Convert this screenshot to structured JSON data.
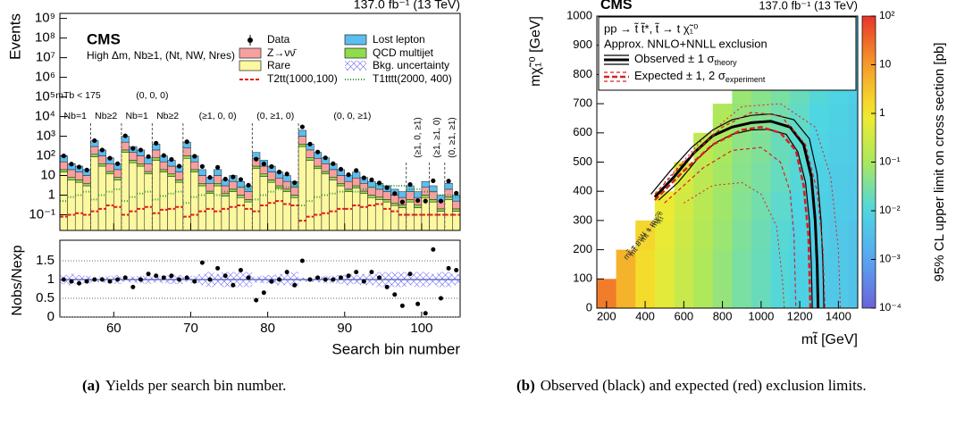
{
  "chart_data": [
    {
      "type": "histogram",
      "log_y": true,
      "experiment": "CMS",
      "lumi": "137.0 fb⁻¹ (13 TeV)",
      "selection": "High Δm, Nb≥1, (Nt, NW, Nres)",
      "xlabel": "Search bin number",
      "ylabel": "Events",
      "ratio_ylabel": "Nobs/Nexp",
      "bins": [
        53,
        54,
        55,
        56,
        57,
        58,
        59,
        60,
        61,
        62,
        63,
        64,
        65,
        66,
        67,
        68,
        69,
        70,
        71,
        72,
        73,
        74,
        75,
        76,
        77,
        78,
        79,
        80,
        81,
        82,
        83,
        84,
        85,
        86,
        87,
        88,
        89,
        90,
        91,
        92,
        93,
        94,
        95,
        96,
        97,
        98,
        99,
        100,
        101,
        102,
        103,
        104,
        105
      ],
      "xlim": [
        53,
        105
      ],
      "xticks": [
        60,
        70,
        80,
        90,
        100
      ],
      "ylim": [
        0.016,
        1800000000
      ],
      "yticks": [
        {
          "value": 1000000000,
          "label": "10⁹"
        },
        {
          "value": 100000000,
          "label": "10⁸"
        },
        {
          "value": 10000000,
          "label": "10⁷"
        },
        {
          "value": 1000000,
          "label": "10⁶"
        },
        {
          "value": 100000,
          "label": "10⁵"
        },
        {
          "value": 10000,
          "label": "10⁴"
        },
        {
          "value": 1000,
          "label": "10³"
        },
        {
          "value": 100,
          "label": "10²"
        },
        10,
        1,
        {
          "value": 0.1,
          "label": "10⁻¹"
        }
      ],
      "ratio_ylim": [
        0,
        2
      ],
      "ratio_yticks": [
        0,
        0.5,
        1,
        1.5
      ],
      "separators": [
        57,
        61,
        65,
        69,
        78,
        84,
        98,
        101,
        103
      ],
      "group_labels": [
        "mTb < 175",
        "(0, 0, 0)"
      ],
      "region_labels": [
        "Nb=1",
        "Nb≥2",
        "Nb=1",
        "Nb≥2",
        "(≥1, 0, 0)",
        "(0, ≥1, 0)",
        "(0, 0, ≥1)",
        "(≥1, 0, ≥1)",
        "(≥1, ≥1, 0)",
        "(0, ≥1, ≥1)"
      ],
      "series": [
        {
          "name": "Lost lepton",
          "color": "#5cbdf0",
          "values": [
            50,
            20,
            15,
            10,
            300,
            100,
            40,
            20,
            500,
            150,
            100,
            40,
            200,
            50,
            30,
            15,
            250,
            50,
            10,
            4,
            10,
            3,
            5,
            2.5,
            1.5,
            75,
            30,
            15,
            7.5,
            5,
            2.5,
            1000,
            200,
            75,
            40,
            20,
            10,
            5,
            7.5,
            4,
            2.5,
            2,
            1.5,
            1,
            0.75,
            1.5,
            0.75,
            2.5,
            1.5,
            0.5,
            2,
            0.5
          ]
        },
        {
          "name": "Z→νν̄",
          "color": "#f7a0a0",
          "values": [
            30,
            12,
            9,
            6,
            180,
            60,
            24,
            12,
            300,
            90,
            60,
            24,
            120,
            30,
            18,
            9,
            150,
            30,
            6,
            2.4,
            6,
            1.8,
            3,
            1.5,
            0.9,
            45,
            18,
            9,
            4.5,
            3,
            1.5,
            600,
            120,
            45,
            24,
            12,
            6,
            3,
            4.5,
            2.4,
            1.5,
            1.2,
            0.9,
            0.6,
            0.45,
            0.9,
            0.45,
            1.5,
            0.9,
            0.3,
            1.2,
            0.3
          ]
        },
        {
          "name": "QCD multijet",
          "color": "#8fdc4a",
          "values": [
            5,
            2,
            1.5,
            1,
            30,
            10,
            4,
            2,
            50,
            15,
            10,
            4,
            20,
            5,
            3,
            1.5,
            25,
            5,
            1,
            0.4,
            1,
            0.3,
            0.5,
            0.25,
            0.15,
            7.5,
            3,
            1.5,
            0.75,
            0.5,
            0.25,
            100,
            20,
            7.5,
            4,
            2,
            1,
            0.5,
            0.75,
            0.4,
            0.25,
            0.2,
            0.15,
            0.1,
            0.08,
            0.15,
            0.08,
            0.25,
            0.15,
            0.05,
            0.2,
            0.05
          ]
        },
        {
          "name": "Rare",
          "color": "#fbf8a0",
          "values": [
            15,
            6,
            4.5,
            3,
            90,
            30,
            12,
            6,
            150,
            45,
            30,
            12,
            60,
            15,
            9,
            4.5,
            75,
            15,
            3,
            1.2,
            3,
            0.9,
            1.5,
            0.75,
            0.45,
            22.5,
            9,
            4.5,
            2.25,
            1.5,
            0.75,
            300,
            60,
            22.5,
            12,
            6,
            3,
            1.5,
            2.25,
            1.2,
            0.75,
            0.6,
            0.45,
            0.3,
            0.23,
            0.45,
            0.23,
            0.75,
            0.45,
            0.15,
            0.6,
            0.15
          ]
        }
      ],
      "data": {
        "name": "Data",
        "values": [
          100,
          38,
          27,
          19,
          600,
          200,
          76,
          40,
          1050,
          240,
          200,
          92,
          440,
          105,
          66,
          30,
          525,
          95,
          29,
          8,
          26,
          6.6,
          8.5,
          6.3,
          3.2,
          68,
          39,
          28.5,
          15,
          12,
          4.3,
          3000,
          400,
          158,
          80,
          40,
          21,
          11,
          18,
          7.6,
          6,
          4.2,
          2.4,
          1.2,
          0.45,
          3.5,
          0.53,
          0.5,
          5.4,
          0.5,
          5.2,
          1.25
        ]
      },
      "ratio": {
        "values": [
          1,
          0.95,
          0.9,
          0.95,
          1,
          1,
          0.95,
          1,
          1.05,
          0.8,
          1,
          1.15,
          1.1,
          1.05,
          1.1,
          1,
          1.05,
          0.95,
          1.45,
          1,
          1.3,
          1.1,
          0.85,
          1.25,
          1.05,
          0.45,
          0.65,
          0.95,
          1,
          1.2,
          0.85,
          1.5,
          1,
          1.05,
          1,
          1,
          1.05,
          1.1,
          1.2,
          0.95,
          1.2,
          1.05,
          0.8,
          0.6,
          0.3,
          1.15,
          0.35,
          0.1,
          1.8,
          0.5,
          1.3,
          1.25
        ]
      },
      "uncertainty": {
        "name": "Bkg. uncertainty",
        "color": "#5b5bf0",
        "values": [
          0.12,
          0.15,
          0.12,
          0.1,
          0.06,
          0.08,
          0.1,
          0.12,
          0.06,
          0.08,
          0.1,
          0.12,
          0.08,
          0.1,
          0.12,
          0.12,
          0.06,
          0.1,
          0.15,
          0.2,
          0.15,
          0.2,
          0.2,
          0.2,
          0.2,
          0.08,
          0.1,
          0.12,
          0.15,
          0.15,
          0.2,
          0.05,
          0.06,
          0.08,
          0.1,
          0.1,
          0.12,
          0.15,
          0.12,
          0.15,
          0.15,
          0.2,
          0.2,
          0.2,
          0.2,
          0.15,
          0.2,
          0.2,
          0.15,
          0.2,
          0.2,
          0.15
        ]
      },
      "signals": [
        {
          "name": "T2tt(1000,100)",
          "color": "#e41a1c",
          "dash": "4,2",
          "values": [
            0.08,
            0.1,
            0.12,
            0.1,
            0.15,
            0.2,
            0.3,
            0.25,
            0.1,
            0.15,
            0.2,
            0.25,
            0.12,
            0.18,
            0.2,
            0.25,
            0.08,
            0.1,
            0.15,
            0.2,
            0.15,
            0.2,
            0.25,
            0.3,
            0.2,
            0.15,
            0.3,
            0.4,
            0.5,
            0.35,
            0.3,
            0.05,
            0.08,
            0.1,
            0.12,
            0.15,
            0.2,
            0.2,
            0.3,
            0.25,
            0.3,
            0.35,
            0.2,
            0.15,
            0.1,
            0.1,
            0.1,
            0.1,
            0.1,
            0.1,
            0.1,
            0.1
          ]
        },
        {
          "name": "T1tttt(2000, 400)",
          "color": "#339933",
          "dash": "1,2",
          "values": [
            0.5,
            0.8,
            1,
            1.5,
            0.6,
            1,
            1.5,
            2,
            0.5,
            0.8,
            1.2,
            1.5,
            0.6,
            0.9,
            1.2,
            1.5,
            0.4,
            0.8,
            1,
            1.5,
            1,
            1.5,
            2,
            2.5,
            2,
            0.6,
            1,
            1.5,
            2,
            2.5,
            3,
            0.3,
            0.5,
            0.8,
            1,
            1.2,
            1.5,
            2,
            1.5,
            2,
            2.5,
            3,
            3,
            3,
            3,
            2,
            2,
            1.5,
            1.5,
            1,
            1,
            0.8
          ]
        }
      ]
    },
    {
      "type": "heatmap",
      "log_z": true,
      "experiment": "CMS",
      "lumi": "137.0 fb⁻¹ (13 TeV)",
      "process": "pp → t̃ t̃*, t̃ → t χ̃₁⁰",
      "legend_title": "Approx. NNLO+NNLL exclusion",
      "xlabel": "mt̃ [GeV]",
      "ylabel": "mχ̃₁⁰ [GeV]",
      "zlabel": "95% CL upper limit on cross section [pb]",
      "diagonal_labels": [
        "mt̃ = mW + mχ̃₁⁰",
        "mt̃ = mt + mχ̃₁⁰"
      ],
      "xlim": [
        150,
        1500
      ],
      "xticks": [
        200,
        400,
        600,
        800,
        1000,
        1200,
        1400
      ],
      "ylim": [
        0,
        1000
      ],
      "yticks": [
        0,
        100,
        200,
        300,
        400,
        500,
        600,
        700,
        800,
        900,
        1000
      ],
      "zlim": [
        0.0001,
        100
      ],
      "zticks": [
        {
          "value": 0.0001,
          "label": "10⁻⁴"
        },
        {
          "value": 0.001,
          "label": "10⁻³"
        },
        {
          "value": 0.01,
          "label": "10⁻²"
        },
        {
          "value": 0.1,
          "label": "10⁻¹"
        },
        1,
        10,
        {
          "value": 100,
          "label": "10²"
        }
      ],
      "x": [
        200,
        300,
        400,
        500,
        600,
        700,
        800,
        900,
        1000,
        1100,
        1200,
        1300,
        1400,
        1500
      ],
      "y": [
        50,
        150,
        250,
        350,
        450,
        550,
        650,
        750,
        850,
        950
      ],
      "z": [
        [
          20,
          5,
          1.5,
          0.6,
          0.25,
          0.12,
          0.06,
          0.03,
          0.02,
          0.012,
          0.008,
          0.006,
          0.005,
          0.004
        ],
        [
          null,
          5,
          1.5,
          0.6,
          0.25,
          0.12,
          0.06,
          0.03,
          0.02,
          0.012,
          0.008,
          0.006,
          0.005,
          0.004
        ],
        [
          null,
          null,
          1.8,
          0.7,
          0.3,
          0.14,
          0.07,
          0.035,
          0.022,
          0.013,
          0.009,
          0.007,
          0.005,
          0.004
        ],
        [
          null,
          null,
          null,
          0.8,
          0.35,
          0.16,
          0.08,
          0.04,
          0.025,
          0.015,
          0.01,
          0.007,
          0.006,
          0.005
        ],
        [
          null,
          null,
          null,
          null,
          0.4,
          0.18,
          0.09,
          0.045,
          0.03,
          0.018,
          0.012,
          0.008,
          0.006,
          0.005
        ],
        [
          null,
          null,
          null,
          null,
          null,
          0.2,
          0.1,
          0.05,
          0.035,
          0.02,
          0.014,
          0.009,
          0.007,
          0.006
        ],
        [
          null,
          null,
          null,
          null,
          null,
          null,
          0.12,
          0.06,
          0.04,
          0.025,
          0.016,
          0.01,
          0.008,
          0.006
        ],
        [
          null,
          null,
          null,
          null,
          null,
          null,
          null,
          0.07,
          0.045,
          0.03,
          0.02,
          0.012,
          0.009,
          0.007
        ],
        [
          null,
          null,
          null,
          null,
          null,
          null,
          null,
          null,
          0.05,
          0.035,
          0.025,
          0.015,
          0.01,
          0.008
        ],
        [
          null,
          null,
          null,
          null,
          null,
          null,
          null,
          null,
          null,
          0.04,
          0.03,
          0.018,
          0.012,
          0.01
        ]
      ],
      "contours": [
        {
          "name": "Observed ± 1 σ",
          "name_sub": "theory",
          "color": "#000000",
          "width": 3,
          "x": [
            450,
            550,
            650,
            750,
            850,
            950,
            1050,
            1150,
            1220,
            1260,
            1280,
            1290,
            1295
          ],
          "y": [
            380,
            450,
            530,
            590,
            620,
            635,
            640,
            620,
            560,
            450,
            300,
            150,
            0
          ]
        },
        {
          "color": "#000000",
          "width": 1.2,
          "x": [
            430,
            530,
            640,
            750,
            850,
            950,
            1050,
            1170,
            1250,
            1290,
            1310,
            1320,
            1325
          ],
          "y": [
            390,
            470,
            550,
            610,
            645,
            660,
            665,
            645,
            580,
            460,
            300,
            150,
            0
          ]
        },
        {
          "color": "#000000",
          "width": 1.2,
          "x": [
            470,
            570,
            670,
            760,
            850,
            950,
            1040,
            1130,
            1190,
            1230,
            1250,
            1260,
            1265
          ],
          "y": [
            370,
            430,
            510,
            565,
            595,
            610,
            612,
            595,
            535,
            430,
            300,
            150,
            0
          ]
        },
        {
          "name": "Expected ± 1, 2 σ",
          "name_sub": "experiment",
          "color": "#d62020",
          "width": 2.5,
          "dash": "6,3",
          "x": [
            450,
            600,
            750,
            900,
            1000,
            1100,
            1180,
            1220,
            1245,
            1255
          ],
          "y": [
            370,
            470,
            560,
            610,
            620,
            600,
            540,
            420,
            250,
            0
          ]
        },
        {
          "color": "#d62020",
          "width": 1.2,
          "dash": "4,3",
          "x": [
            450,
            600,
            800,
            950,
            1100,
            1230,
            1290,
            1320,
            1330
          ],
          "y": [
            390,
            500,
            620,
            670,
            660,
            560,
            400,
            200,
            0
          ]
        },
        {
          "color": "#d62020",
          "width": 1.2,
          "dash": "4,3",
          "x": [
            500,
            700,
            850,
            1000,
            1100,
            1150,
            1170,
            1180
          ],
          "y": [
            360,
            480,
            540,
            550,
            500,
            400,
            250,
            0
          ]
        },
        {
          "color": "#d62020",
          "width": 1,
          "dash": "2,3",
          "x": [
            500,
            700,
            900,
            1100,
            1280,
            1360,
            1400,
            1410
          ],
          "y": [
            430,
            580,
            690,
            700,
            620,
            450,
            200,
            0
          ]
        },
        {
          "color": "#d62020",
          "width": 1,
          "dash": "2,3",
          "x": [
            600,
            750,
            900,
            1000,
            1080,
            1110,
            1120
          ],
          "y": [
            360,
            420,
            430,
            390,
            280,
            100,
            0
          ]
        }
      ]
    }
  ],
  "captions": [
    {
      "label": "(a)",
      "text": "Yields per search bin number."
    },
    {
      "label": "(b)",
      "text": "Observed (black) and expected (red) exclusion limits."
    }
  ]
}
